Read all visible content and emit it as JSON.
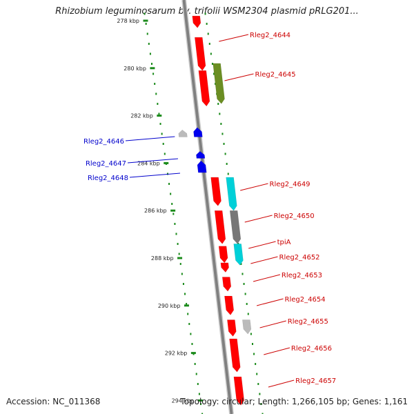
{
  "title": "Rhizobium leguminosarum bv. trifolii WSM2304 plasmid pRLG201...",
  "footer": {
    "accession": "Accession: NC_011368",
    "stats": "Topology: circular; Length: 1,266,105 bp; Genes: 1,161"
  },
  "colors": {
    "backbone": "#808080",
    "tick_dots": "#1a8a1a",
    "forward_label": "#cc0000",
    "reverse_label": "#0000cc",
    "cds_red": "#ff0000",
    "cds_olive": "#6b8e23",
    "cds_cyan": "#00d0d8",
    "cds_gray": "#bbbbbb",
    "cds_darkgray": "#777777",
    "cds_blue": "#0000ee"
  },
  "ticks": [
    {
      "label": "278 kbp",
      "kbp": 278
    },
    {
      "label": "280 kbp",
      "kbp": 280
    },
    {
      "label": "282 kbp",
      "kbp": 282
    },
    {
      "label": "284 kbp",
      "kbp": 284
    },
    {
      "label": "286 kbp",
      "kbp": 286
    },
    {
      "label": "288 kbp",
      "kbp": 288
    },
    {
      "label": "290 kbp",
      "kbp": 290
    },
    {
      "label": "292 kbp",
      "kbp": 292
    },
    {
      "label": "294 kbp",
      "kbp": 294
    }
  ],
  "forward_labels": [
    {
      "name": "Rleg2_4644"
    },
    {
      "name": "Rleg2_4645"
    },
    {
      "name": "Rleg2_4649"
    },
    {
      "name": "Rleg2_4650"
    },
    {
      "name": "tpiA"
    },
    {
      "name": "Rleg2_4652"
    },
    {
      "name": "Rleg2_4653"
    },
    {
      "name": "Rleg2_4654"
    },
    {
      "name": "Rleg2_4655"
    },
    {
      "name": "Rleg2_4656"
    },
    {
      "name": "Rleg2_4657"
    }
  ],
  "reverse_labels": [
    {
      "name": "Rleg2_4646"
    },
    {
      "name": "Rleg2_4647"
    },
    {
      "name": "Rleg2_4648"
    }
  ],
  "features": [
    {
      "color": "cds_red",
      "strand": "+",
      "lane": 1,
      "start": 277.8,
      "end": 278.3
    },
    {
      "color": "cds_red",
      "strand": "+",
      "lane": 1,
      "start": 278.7,
      "end": 280.1
    },
    {
      "color": "cds_olive",
      "strand": "+",
      "lane": 2,
      "start": 279.8,
      "end": 281.5
    },
    {
      "color": "cds_red",
      "strand": "+",
      "lane": 1,
      "start": 280.1,
      "end": 281.6
    },
    {
      "color": "cds_gray",
      "strand": "-",
      "lane": 2,
      "start": 282.6,
      "end": 282.9
    },
    {
      "color": "cds_blue",
      "strand": "-",
      "lane": 1,
      "start": 282.5,
      "end": 282.9
    },
    {
      "color": "cds_blue",
      "strand": "-",
      "lane": 1,
      "start": 283.5,
      "end": 283.8
    },
    {
      "color": "cds_blue",
      "strand": "-",
      "lane": 1,
      "start": 283.9,
      "end": 284.4
    },
    {
      "color": "cds_red",
      "strand": "+",
      "lane": 1,
      "start": 284.6,
      "end": 285.8
    },
    {
      "color": "cds_cyan",
      "strand": "+",
      "lane": 2,
      "start": 284.6,
      "end": 286.0
    },
    {
      "color": "cds_red",
      "strand": "+",
      "lane": 1,
      "start": 286.0,
      "end": 287.4
    },
    {
      "color": "cds_darkgray",
      "strand": "+",
      "lane": 2,
      "start": 286.0,
      "end": 287.4
    },
    {
      "color": "cds_cyan",
      "strand": "+",
      "lane": 2,
      "start": 287.4,
      "end": 288.3
    },
    {
      "color": "cds_red",
      "strand": "+",
      "lane": 1,
      "start": 287.5,
      "end": 288.2
    },
    {
      "color": "cds_red",
      "strand": "+",
      "lane": 1,
      "start": 288.2,
      "end": 288.6
    },
    {
      "color": "cds_red",
      "strand": "+",
      "lane": 1,
      "start": 288.8,
      "end": 289.4
    },
    {
      "color": "cds_red",
      "strand": "+",
      "lane": 1,
      "start": 289.6,
      "end": 290.4
    },
    {
      "color": "cds_gray",
      "strand": "+",
      "lane": 2,
      "start": 290.6,
      "end": 291.2
    },
    {
      "color": "cds_red",
      "strand": "+",
      "lane": 1,
      "start": 290.6,
      "end": 291.3
    },
    {
      "color": "cds_red",
      "strand": "+",
      "lane": 1,
      "start": 291.4,
      "end": 292.8
    },
    {
      "color": "cds_red",
      "strand": "+",
      "lane": 1,
      "start": 293.0,
      "end": 294.2
    }
  ]
}
